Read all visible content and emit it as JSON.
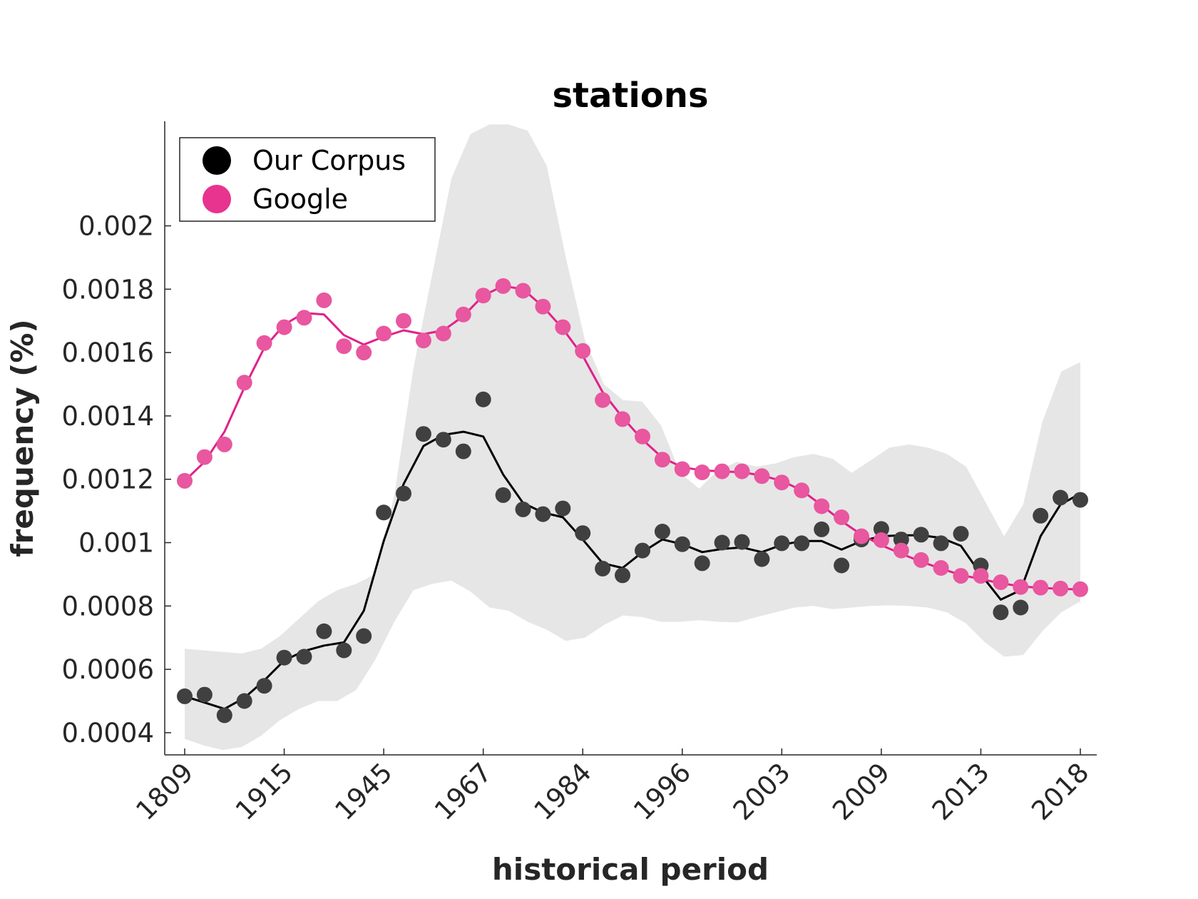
{
  "chart_data": {
    "type": "line",
    "title": "stations",
    "xlabel": "historical period",
    "ylabel": "frequency (%)",
    "x_tick_labels": [
      "1809",
      "1915",
      "1945",
      "1967",
      "1984",
      "1996",
      "2003",
      "2009",
      "2013",
      "2018"
    ],
    "y_ticks": [
      0.0004,
      0.0006,
      0.0008,
      0.001,
      0.0012,
      0.0014,
      0.0016,
      0.0018,
      0.002
    ],
    "y_tick_labels": [
      "0.0004",
      "0.0006",
      "0.0008",
      "0.001",
      "0.0012",
      "0.0014",
      "0.0016",
      "0.0018",
      "0.002"
    ],
    "ylim": [
      0.00033,
      0.00233
    ],
    "grid": false,
    "legend_position": "top-left",
    "series": [
      {
        "name": "Our Corpus",
        "color": "#000000",
        "marker_color": "#404040",
        "points": [
          0.000515,
          0.00052,
          0.000455,
          0.0005,
          0.000548,
          0.000637,
          0.00064,
          0.00072,
          0.00066,
          0.000705,
          0.001095,
          0.001155,
          0.001343,
          0.001325,
          0.001288,
          0.001452,
          0.00115,
          0.001105,
          0.00109,
          0.001108,
          0.00103,
          0.000918,
          0.000897,
          0.000975,
          0.001035,
          0.000995,
          0.000935,
          0.001,
          0.001002,
          0.000948,
          0.000998,
          0.000998,
          0.001042,
          0.000928,
          0.00101,
          0.001043,
          0.00101,
          0.001025,
          0.000998,
          0.001028,
          0.000928,
          0.00078,
          0.000795,
          0.001085,
          0.001142,
          0.001135
        ],
        "smoothed": [
          0.000515,
          0.000495,
          0.000475,
          0.00051,
          0.000565,
          0.000628,
          0.000658,
          0.000675,
          0.000685,
          0.000785,
          0.001005,
          0.001185,
          0.001305,
          0.00134,
          0.00135,
          0.001335,
          0.001215,
          0.001125,
          0.001095,
          0.00108,
          0.00101,
          0.000935,
          0.00092,
          0.00097,
          0.00101,
          0.000995,
          0.00097,
          0.00098,
          0.000985,
          0.00097,
          0.000993,
          0.001005,
          0.001005,
          0.000978,
          0.001005,
          0.00102,
          0.001023,
          0.001023,
          0.001015,
          0.00099,
          0.0009,
          0.00082,
          0.00085,
          0.00102,
          0.00112,
          0.001155
        ]
      },
      {
        "name": "Google",
        "color": "#e0218a",
        "marker_color": "#e8579f",
        "points": [
          0.001195,
          0.00127,
          0.00131,
          0.001505,
          0.00163,
          0.00168,
          0.00171,
          0.001765,
          0.00162,
          0.0016,
          0.00166,
          0.0017,
          0.001638,
          0.00166,
          0.00172,
          0.00178,
          0.00181,
          0.001795,
          0.001745,
          0.00168,
          0.001605,
          0.00145,
          0.00139,
          0.001335,
          0.001262,
          0.001232,
          0.001222,
          0.001225,
          0.001225,
          0.00121,
          0.00119,
          0.001165,
          0.001115,
          0.00108,
          0.00102,
          0.001008,
          0.000975,
          0.000945,
          0.00092,
          0.000895,
          0.000895,
          0.000875,
          0.00086,
          0.000858,
          0.000855,
          0.000853
        ],
        "smoothed": [
          0.001195,
          0.001255,
          0.00135,
          0.00149,
          0.001615,
          0.001688,
          0.001725,
          0.00172,
          0.001655,
          0.001625,
          0.00165,
          0.00167,
          0.001658,
          0.00167,
          0.001715,
          0.00178,
          0.00181,
          0.0018,
          0.001745,
          0.001675,
          0.00159,
          0.001475,
          0.001395,
          0.001325,
          0.001268,
          0.001238,
          0.001228,
          0.001225,
          0.001222,
          0.001212,
          0.001195,
          0.001165,
          0.001118,
          0.001068,
          0.001025,
          0.000992,
          0.000965,
          0.00094,
          0.000918,
          0.000898,
          0.000885,
          0.000872,
          0.000862,
          0.000857,
          0.000854,
          0.000852
        ]
      },
      {
        "name": "",
        "kind": "band",
        "color": "#e6e6e6",
        "upper": [
          0.000665,
          0.00066,
          0.000655,
          0.00065,
          0.000665,
          0.000705,
          0.00076,
          0.000815,
          0.00085,
          0.00087,
          0.0009,
          0.00115,
          0.00155,
          0.00185,
          0.00215,
          0.00229,
          0.00232,
          0.00232,
          0.0023,
          0.00219,
          0.0019,
          0.00164,
          0.0015,
          0.00145,
          0.001445,
          0.00137,
          0.00122,
          0.00117,
          0.00123,
          0.001255,
          0.00124,
          0.00125,
          0.00127,
          0.00128,
          0.001265,
          0.00122,
          0.00126,
          0.0013,
          0.00131,
          0.0013,
          0.00128,
          0.00124,
          0.00113,
          0.00102,
          0.00112,
          0.00138,
          0.00154,
          0.00157
        ],
        "lower": [
          0.00038,
          0.00036,
          0.000345,
          0.000355,
          0.00039,
          0.00044,
          0.000475,
          0.0005,
          0.0005,
          0.000535,
          0.00063,
          0.00075,
          0.00085,
          0.00087,
          0.00088,
          0.000845,
          0.000795,
          0.000785,
          0.00075,
          0.000725,
          0.00069,
          0.0007,
          0.00074,
          0.00077,
          0.000765,
          0.00075,
          0.00075,
          0.000755,
          0.00075,
          0.000748,
          0.000765,
          0.00078,
          0.000795,
          0.0008,
          0.00079,
          0.000795,
          0.0008,
          0.000802,
          0.0008,
          0.000795,
          0.00078,
          0.000745,
          0.000685,
          0.00064,
          0.000645,
          0.00072,
          0.00078,
          0.000815
        ]
      }
    ]
  }
}
